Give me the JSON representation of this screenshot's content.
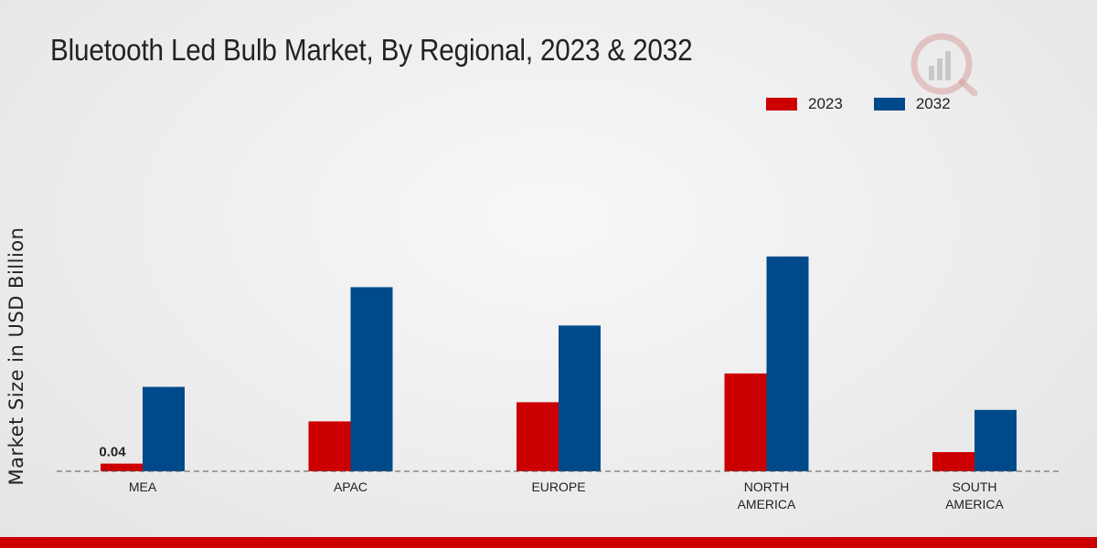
{
  "header": {
    "title": "Bluetooth Led Bulb Market, By Regional, 2023 & 2032"
  },
  "colors": {
    "series_2023": "#cc0000",
    "series_2032": "#004a8c",
    "bottom_bar": "#cc0000"
  },
  "chart_data": {
    "type": "bar",
    "title": "Bluetooth Led Bulb Market, By Regional, 2023 & 2032",
    "xlabel": "",
    "ylabel": "Market Size in USD Billion",
    "categories": [
      "MEA",
      "APAC",
      "EUROPE",
      "NORTH AMERICA",
      "SOUTH AMERICA"
    ],
    "series": [
      {
        "name": "2023",
        "values": [
          0.04,
          0.26,
          0.36,
          0.51,
          0.1
        ]
      },
      {
        "name": "2032",
        "values": [
          0.44,
          0.96,
          0.76,
          1.12,
          0.32
        ]
      }
    ],
    "data_labels": [
      {
        "series": "2023",
        "category": "MEA",
        "text": "0.04"
      }
    ],
    "ylim": [
      0,
      1.5
    ],
    "grid": false,
    "legend": "top-right"
  }
}
